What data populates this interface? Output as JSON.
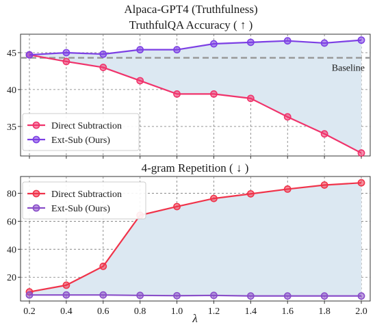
{
  "chart_data": [
    {
      "type": "line",
      "figure_title": "Alpaca-GPT4 (Truthfulness)",
      "title": "TruthfulQA Accuracy ( ↑ )",
      "xlabel": "",
      "ylabel": "",
      "x": [
        0.2,
        0.4,
        0.6,
        0.8,
        1.0,
        1.2,
        1.4,
        1.6,
        1.8,
        2.0
      ],
      "x_ticks": [
        "0.2",
        "0.4",
        "0.6",
        "0.8",
        "1.0",
        "1.2",
        "1.4",
        "1.6",
        "1.8",
        "2.0"
      ],
      "xlim": [
        0.2,
        2.0
      ],
      "ylim": [
        31,
        47.5
      ],
      "y_ticks": [
        35,
        40,
        45
      ],
      "grid": true,
      "legend_position": "lower-left",
      "baseline": {
        "value": 44.3,
        "label": "Baseline",
        "color": "#9a9a9a"
      },
      "shaded_between_series": true,
      "fill_color": "#dce8f2",
      "series": [
        {
          "name": "Direct Subtraction",
          "color": "#f0336b",
          "values": [
            44.7,
            43.8,
            43.0,
            41.2,
            39.4,
            39.4,
            38.8,
            36.3,
            34.0,
            31.4
          ]
        },
        {
          "name": "Ext-Sub (Ours)",
          "color": "#7c3fe4",
          "values": [
            44.7,
            45.0,
            44.8,
            45.4,
            45.4,
            46.2,
            46.4,
            46.6,
            46.3,
            46.7
          ]
        }
      ]
    },
    {
      "type": "line",
      "title": "4-gram Repetition ( ↓ )",
      "xlabel": "λ",
      "ylabel": "",
      "x": [
        0.2,
        0.4,
        0.6,
        0.8,
        1.0,
        1.2,
        1.4,
        1.6,
        1.8,
        2.0
      ],
      "x_ticks": [
        "0.2",
        "0.4",
        "0.6",
        "0.8",
        "1.0",
        "1.2",
        "1.4",
        "1.6",
        "1.8",
        "2.0"
      ],
      "xlim": [
        0.2,
        2.0
      ],
      "ylim": [
        3,
        92
      ],
      "y_ticks": [
        20,
        40,
        60,
        80
      ],
      "grid": true,
      "legend_position": "top-left",
      "shaded_between_series": true,
      "fill_color": "#dce8f2",
      "series": [
        {
          "name": "Direct Subtraction",
          "color": "#f0334a",
          "values": [
            9.5,
            14.3,
            27.8,
            64.3,
            70.5,
            76.3,
            79.6,
            83.0,
            85.9,
            87.5
          ]
        },
        {
          "name": "Ext-Sub (Ours)",
          "color": "#8a4fc9",
          "values": [
            7.3,
            7.3,
            7.3,
            7.0,
            6.8,
            7.0,
            6.6,
            6.6,
            6.6,
            6.6
          ]
        }
      ]
    }
  ]
}
